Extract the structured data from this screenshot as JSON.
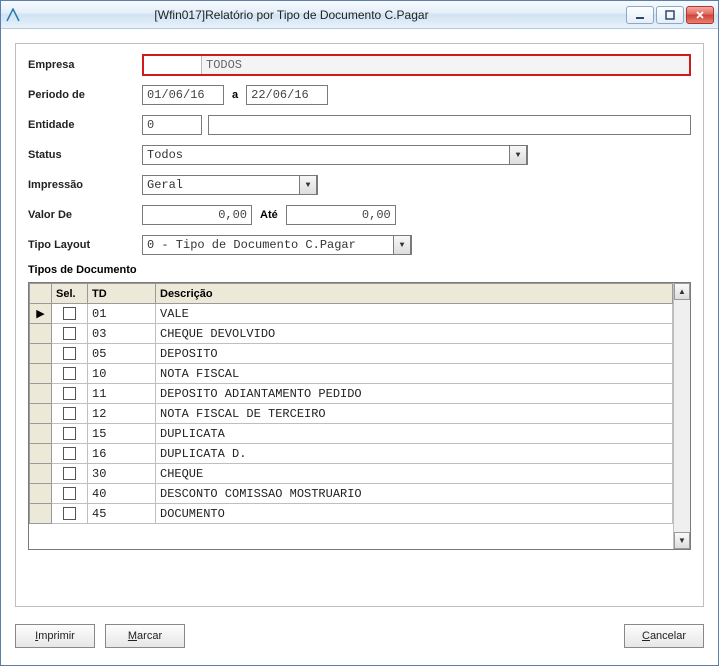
{
  "window": {
    "title": "[Wfin017]Relatório por Tipo de Documento C.Pagar"
  },
  "fields": {
    "empresa": {
      "label": "Empresa",
      "code": "",
      "desc": "TODOS"
    },
    "periodo": {
      "label": "Periodo de",
      "from": "01/06/16",
      "sep": "a",
      "to": "22/06/16"
    },
    "entidade": {
      "label": "Entidade",
      "code": "0",
      "desc": ""
    },
    "status": {
      "label": "Status",
      "value": "Todos"
    },
    "impressao": {
      "label": "Impressão",
      "value": "Geral"
    },
    "valor": {
      "label": "Valor De",
      "from": "0,00",
      "sep": "Até",
      "to": "0,00"
    },
    "tipolayout": {
      "label": "Tipo Layout",
      "value": "0 - Tipo de Documento C.Pagar"
    },
    "tiposdoc": {
      "label": "Tipos de Documento"
    }
  },
  "grid": {
    "headers": {
      "sel": "Sel.",
      "td": "TD",
      "desc": "Descrição"
    },
    "rows": [
      {
        "td": "01",
        "desc": "VALE",
        "current": true
      },
      {
        "td": "03",
        "desc": "CHEQUE DEVOLVIDO"
      },
      {
        "td": "05",
        "desc": "DEPOSITO"
      },
      {
        "td": "10",
        "desc": "NOTA FISCAL"
      },
      {
        "td": "11",
        "desc": "DEPOSITO ADIANTAMENTO PEDIDO"
      },
      {
        "td": "12",
        "desc": "NOTA FISCAL DE TERCEIRO"
      },
      {
        "td": "15",
        "desc": "DUPLICATA"
      },
      {
        "td": "16",
        "desc": "DUPLICATA D."
      },
      {
        "td": "30",
        "desc": "CHEQUE"
      },
      {
        "td": "40",
        "desc": "DESCONTO COMISSAO MOSTRUARIO"
      },
      {
        "td": "45",
        "desc": "DOCUMENTO"
      }
    ]
  },
  "buttons": {
    "imprimir": "mprimir",
    "imprimir_u": "I",
    "marcar": "arcar",
    "marcar_u": "M",
    "cancelar": "ancelar",
    "cancelar_u": "C"
  }
}
